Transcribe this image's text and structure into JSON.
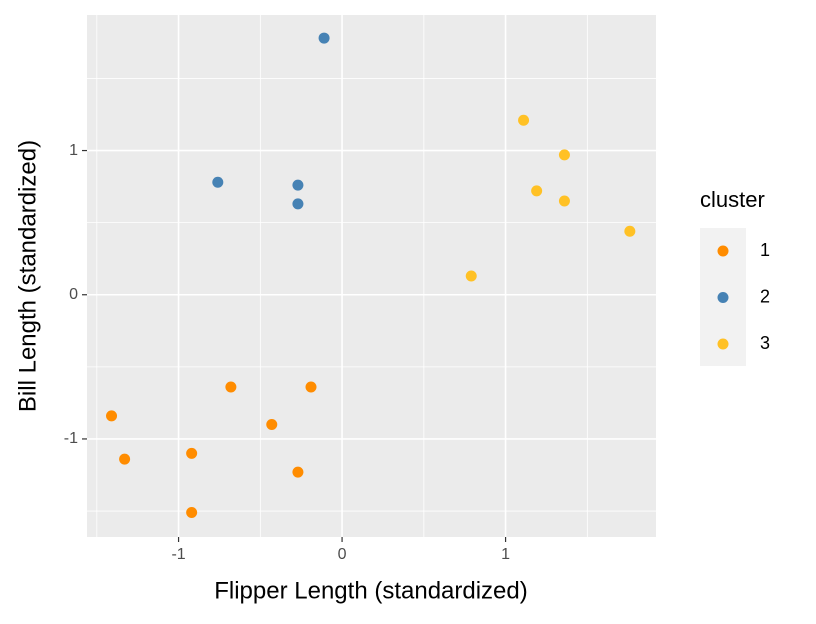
{
  "chart_data": {
    "type": "scatter",
    "x_label": "Flipper Length (standardized)",
    "y_label": "Bill Length (standardized)",
    "legend_title": "cluster",
    "legend_position": "right",
    "xlim": [
      -1.56,
      1.92
    ],
    "ylim": [
      -1.68,
      1.94
    ],
    "xticks": [
      -1,
      0,
      1
    ],
    "yticks": [
      -1,
      0,
      1
    ],
    "xticks_minor": [
      -1.5,
      -0.5,
      0.5,
      1.5
    ],
    "yticks_minor": [
      -1.5,
      -0.5,
      0.5,
      1.5
    ],
    "grid": true,
    "series": [
      {
        "name": "1",
        "color": "#ff8c00",
        "x": [
          -0.68,
          -0.19,
          -1.41,
          -0.43,
          -1.33,
          -0.92,
          -0.27,
          -0.92
        ],
        "values": [
          -0.64,
          -0.64,
          -0.84,
          -0.9,
          -1.14,
          -1.1,
          -1.23,
          -1.51
        ]
      },
      {
        "name": "2",
        "color": "#4682b4",
        "x": [
          -0.11,
          -0.76,
          -0.27,
          -0.27
        ],
        "values": [
          1.78,
          0.78,
          0.76,
          0.63
        ]
      },
      {
        "name": "3",
        "color": "#ffc125",
        "x": [
          1.11,
          1.36,
          1.19,
          1.36,
          1.76,
          0.79
        ],
        "values": [
          1.21,
          0.97,
          0.72,
          0.65,
          0.44,
          0.13
        ]
      }
    ]
  }
}
